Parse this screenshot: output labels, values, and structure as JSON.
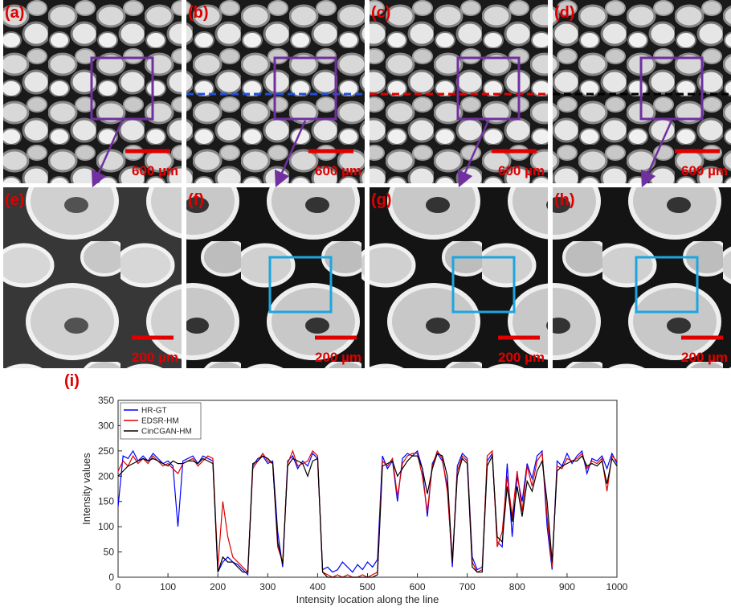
{
  "figure": {
    "panels": [
      {
        "label": "(a)",
        "scale": "600 µm"
      },
      {
        "label": "(b)",
        "scale": "600 µm"
      },
      {
        "label": "(c)",
        "scale": "600 µm"
      },
      {
        "label": "(d)",
        "scale": "600 µm"
      },
      {
        "label": "(e)",
        "scale": "200 µm"
      },
      {
        "label": "(f)",
        "scale": "200 µm"
      },
      {
        "label": "(g)",
        "scale": "200 µm"
      },
      {
        "label": "(h)",
        "scale": "200 µm"
      }
    ],
    "chart_label": "(i)"
  },
  "chart_data": {
    "type": "line",
    "x_label": "Intensity location along the line",
    "y_label": "Intensity values",
    "x": [
      0,
      10,
      20,
      30,
      40,
      50,
      60,
      70,
      80,
      90,
      100,
      110,
      120,
      130,
      140,
      150,
      160,
      170,
      180,
      190,
      200,
      210,
      220,
      230,
      240,
      250,
      260,
      270,
      280,
      290,
      300,
      310,
      320,
      330,
      340,
      350,
      360,
      370,
      380,
      390,
      400,
      410,
      420,
      430,
      440,
      450,
      460,
      470,
      480,
      490,
      500,
      510,
      520,
      530,
      540,
      550,
      560,
      570,
      580,
      590,
      600,
      610,
      620,
      630,
      640,
      650,
      660,
      670,
      680,
      690,
      700,
      710,
      720,
      730,
      740,
      750,
      760,
      770,
      780,
      790,
      800,
      810,
      820,
      830,
      840,
      850,
      860,
      870,
      880,
      890,
      900,
      910,
      920,
      930,
      940,
      950,
      960,
      970,
      980,
      990,
      1000
    ],
    "series": [
      {
        "name": "HR-GT",
        "color": "#0000ff",
        "values": [
          140,
          240,
          235,
          250,
          230,
          240,
          230,
          245,
          235,
          225,
          230,
          220,
          100,
          230,
          235,
          240,
          225,
          240,
          235,
          230,
          10,
          30,
          40,
          30,
          25,
          15,
          5,
          220,
          235,
          240,
          225,
          230,
          90,
          20,
          230,
          240,
          215,
          230,
          220,
          245,
          235,
          15,
          20,
          10,
          15,
          30,
          20,
          10,
          25,
          15,
          30,
          20,
          35,
          240,
          215,
          230,
          150,
          235,
          245,
          240,
          250,
          215,
          120,
          225,
          245,
          230,
          180,
          20,
          220,
          245,
          235,
          40,
          15,
          20,
          230,
          245,
          70,
          60,
          225,
          80,
          200,
          150,
          225,
          195,
          240,
          250,
          100,
          15,
          230,
          220,
          245,
          225,
          240,
          250,
          205,
          235,
          230,
          240,
          215,
          245,
          225
        ]
      },
      {
        "name": "EDSR-HM",
        "color": "#e00000",
        "values": [
          210,
          230,
          220,
          240,
          225,
          235,
          225,
          240,
          230,
          220,
          225,
          215,
          205,
          225,
          230,
          235,
          220,
          230,
          240,
          235,
          20,
          150,
          80,
          40,
          30,
          20,
          10,
          215,
          230,
          245,
          230,
          225,
          60,
          30,
          225,
          250,
          220,
          225,
          230,
          250,
          240,
          10,
          5,
          0,
          5,
          0,
          5,
          0,
          0,
          5,
          0,
          5,
          10,
          230,
          220,
          235,
          160,
          225,
          240,
          245,
          245,
          200,
          130,
          220,
          250,
          235,
          170,
          30,
          210,
          240,
          230,
          30,
          10,
          15,
          240,
          250,
          60,
          90,
          200,
          120,
          210,
          130,
          220,
          180,
          230,
          245,
          120,
          20,
          220,
          215,
          235,
          230,
          235,
          245,
          215,
          230,
          225,
          235,
          170,
          240,
          230
        ]
      },
      {
        "name": "CinCGAN-HM",
        "color": "#000000",
        "values": [
          200,
          210,
          220,
          225,
          230,
          235,
          230,
          235,
          230,
          225,
          220,
          230,
          225,
          225,
          230,
          230,
          225,
          235,
          230,
          225,
          10,
          40,
          30,
          30,
          20,
          10,
          10,
          225,
          230,
          240,
          235,
          225,
          70,
          25,
          220,
          235,
          230,
          225,
          200,
          230,
          235,
          10,
          0,
          0,
          0,
          0,
          0,
          0,
          0,
          0,
          0,
          0,
          5,
          220,
          225,
          230,
          200,
          215,
          230,
          240,
          240,
          215,
          165,
          215,
          245,
          240,
          200,
          30,
          200,
          235,
          225,
          20,
          10,
          10,
          220,
          240,
          80,
          70,
          180,
          110,
          180,
          120,
          190,
          170,
          210,
          230,
          150,
          30,
          210,
          220,
          225,
          230,
          230,
          240,
          220,
          225,
          220,
          230,
          185,
          235,
          220
        ]
      }
    ],
    "xlim": [
      0,
      1000
    ],
    "xticks": [
      0,
      100,
      200,
      300,
      400,
      500,
      600,
      700,
      800,
      900,
      1000
    ],
    "ylim": [
      0,
      350
    ],
    "yticks": [
      0,
      50,
      100,
      150,
      200,
      250,
      300,
      350
    ],
    "legend": "upper left",
    "grid": false
  }
}
